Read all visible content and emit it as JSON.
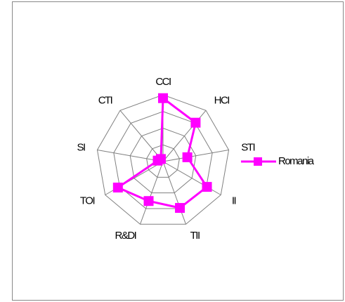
{
  "chart_data": {
    "type": "radar",
    "categories": [
      "CCI",
      "HCI",
      "STI",
      "II",
      "TII",
      "R&DI",
      "TOI",
      "SI",
      "CTI"
    ],
    "series": [
      {
        "name": "Romania",
        "color": "#ff00ff",
        "values": [
          0.95,
          0.76,
          0.37,
          0.76,
          0.74,
          0.63,
          0.78,
          0.08,
          0.05
        ]
      }
    ],
    "rlim": [
      0,
      1
    ],
    "rticks": [
      0.25,
      0.5,
      0.75,
      1
    ],
    "grid": true,
    "legend": "right"
  }
}
